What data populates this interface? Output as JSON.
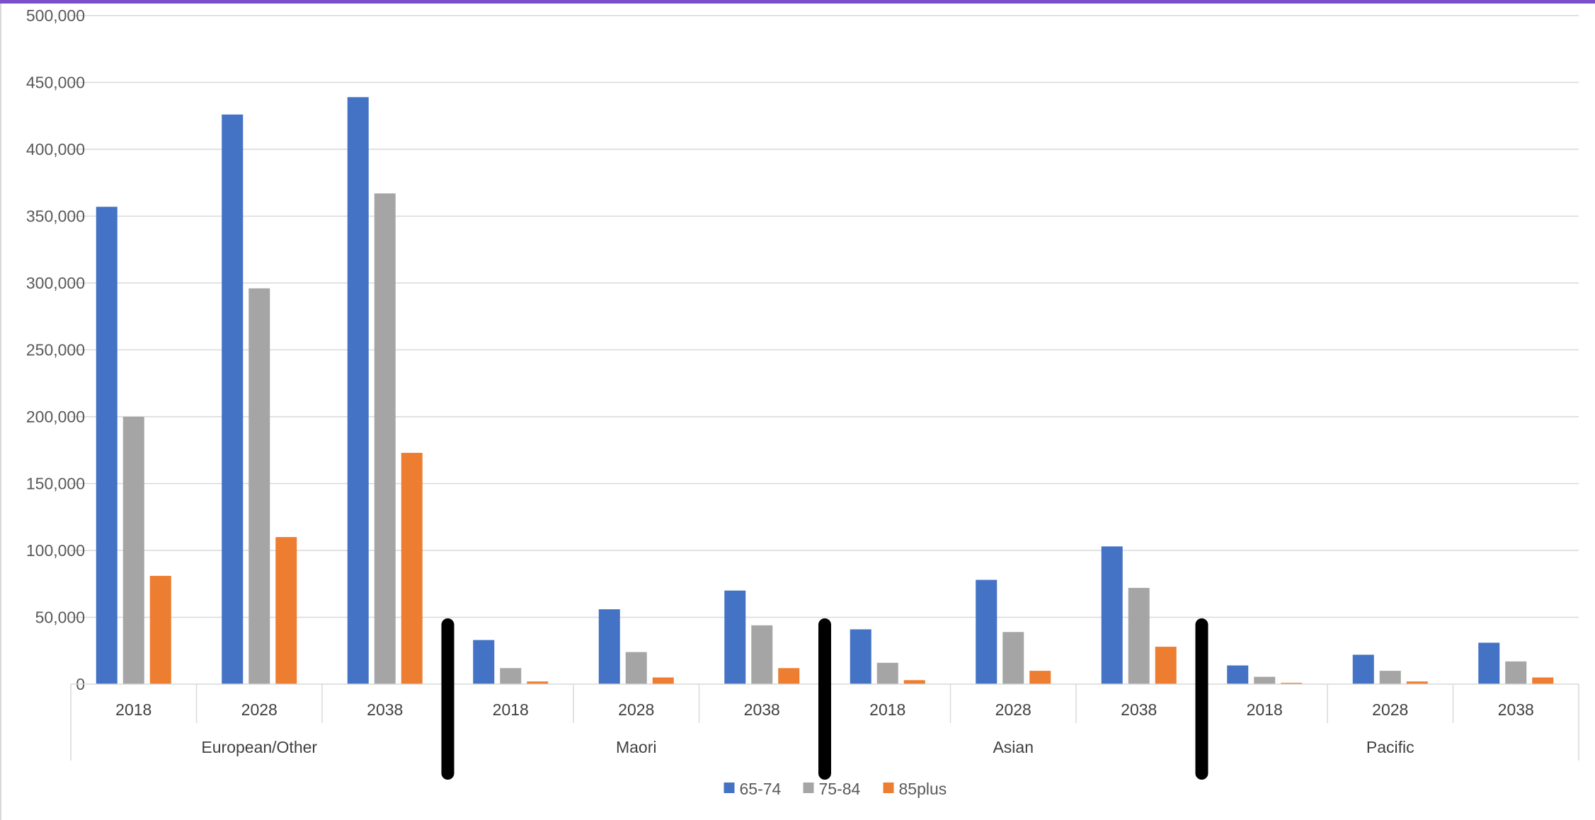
{
  "colors": {
    "top_bar": "#7b4fc9",
    "series": [
      "#4472c4",
      "#a5a5a5",
      "#ed7d31"
    ],
    "grid": "#d9d9d9",
    "separator": "#000000"
  },
  "chart_data": {
    "type": "bar",
    "groups": [
      "European/Other",
      "Maori",
      "Asian",
      "Pacific"
    ],
    "years": [
      "2018",
      "2028",
      "2038"
    ],
    "categories": [
      "European/Other 2018",
      "European/Other 2028",
      "European/Other 2038",
      "Maori 2018",
      "Maori 2028",
      "Maori 2038",
      "Asian 2018",
      "Asian 2028",
      "Asian 2038",
      "Pacific 2018",
      "Pacific 2028",
      "Pacific 2038"
    ],
    "series": [
      {
        "name": "65-74",
        "values": [
          357000,
          426000,
          439000,
          33000,
          56000,
          70000,
          41000,
          78000,
          103000,
          14000,
          22000,
          31000
        ]
      },
      {
        "name": "75-84",
        "values": [
          200000,
          296000,
          367000,
          12000,
          24000,
          44000,
          16000,
          39000,
          72000,
          5500,
          10000,
          17000
        ]
      },
      {
        "name": "85plus",
        "values": [
          81000,
          110000,
          173000,
          2000,
          5000,
          12000,
          3000,
          10000,
          28000,
          1000,
          2000,
          5000
        ]
      }
    ],
    "ylim": [
      0,
      500000
    ],
    "yticks": [
      "0",
      "50,000",
      "100,000",
      "150,000",
      "200,000",
      "250,000",
      "300,000",
      "350,000",
      "400,000",
      "450,000",
      "500,000"
    ],
    "grid": true,
    "legend_position": "bottom-center"
  }
}
